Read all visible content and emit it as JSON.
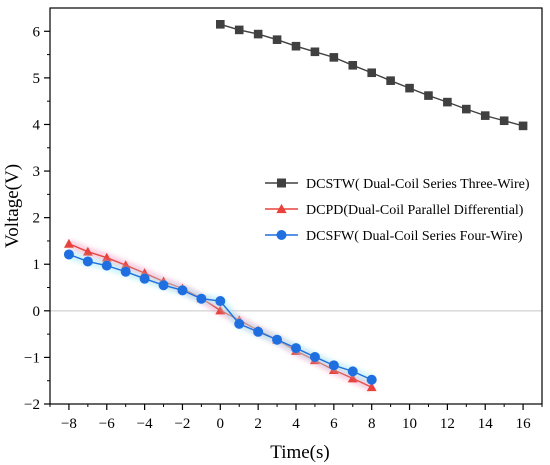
{
  "chart_data": {
    "type": "line",
    "title": "",
    "xlabel": "Time(s)",
    "ylabel": "Voltage(V)",
    "xlim": [
      -9,
      17
    ],
    "ylim": [
      -2,
      6.5
    ],
    "xticks": [
      -8,
      -6,
      -4,
      -2,
      0,
      2,
      4,
      6,
      8,
      10,
      12,
      14,
      16
    ],
    "yticks": [
      -2,
      -1,
      0,
      1,
      2,
      3,
      4,
      5,
      6
    ],
    "xtick_labels": [
      "−8",
      "−6",
      "−4",
      "−2",
      "0",
      "2",
      "4",
      "6",
      "8",
      "10",
      "12",
      "14",
      "16"
    ],
    "ytick_labels": [
      "−2",
      "−1",
      "0",
      "1",
      "2",
      "3",
      "4",
      "5",
      "6"
    ],
    "grid": false,
    "zero_line": true,
    "legend_position": "center-right",
    "series": [
      {
        "name": "DCSTW( Dual-Coil Series Three-Wire)",
        "color": "#404040",
        "marker": "square",
        "x": [
          0,
          1,
          2,
          3,
          4,
          5,
          6,
          7,
          8,
          9,
          10,
          11,
          12,
          13,
          14,
          15,
          16
        ],
        "y": [
          6.15,
          6.03,
          5.94,
          5.82,
          5.68,
          5.56,
          5.44,
          5.27,
          5.11,
          4.94,
          4.78,
          4.62,
          4.48,
          4.33,
          4.19,
          4.08,
          3.97
        ]
      },
      {
        "name": "DCPD(Dual-Coil Parallel Differential)",
        "color": "#e8423c",
        "marker": "triangle",
        "x": [
          -8,
          -7,
          -6,
          -5,
          -4,
          -3,
          -2,
          -1,
          0,
          1,
          2,
          3,
          4,
          5,
          6,
          7,
          8
        ],
        "y": [
          1.44,
          1.27,
          1.14,
          0.98,
          0.81,
          0.63,
          0.48,
          0.27,
          0.01,
          -0.2,
          -0.42,
          -0.62,
          -0.86,
          -1.06,
          -1.27,
          -1.45,
          -1.64
        ]
      },
      {
        "name": "DCSFW( Dual-Coil Series Four-Wire)",
        "color": "#1f6fe0",
        "marker": "circle",
        "x": [
          -8,
          -7,
          -6,
          -5,
          -4,
          -3,
          -2,
          -1,
          0,
          1,
          2,
          3,
          4,
          5,
          6,
          7,
          8
        ],
        "y": [
          1.21,
          1.06,
          0.97,
          0.84,
          0.69,
          0.55,
          0.44,
          0.26,
          0.21,
          -0.28,
          -0.45,
          -0.62,
          -0.8,
          -0.99,
          -1.17,
          -1.3,
          -1.48
        ]
      }
    ]
  }
}
